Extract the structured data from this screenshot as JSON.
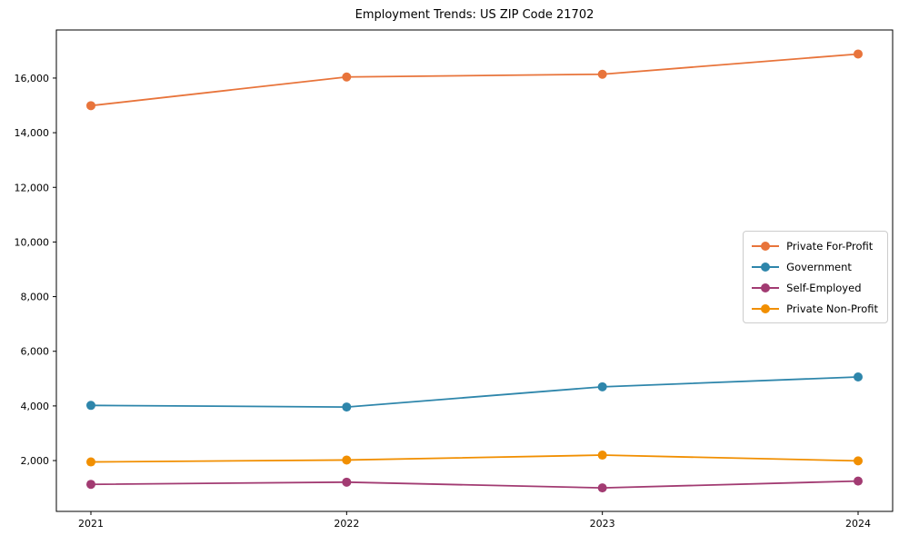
{
  "page": {
    "background_color": "#ffffff"
  },
  "chart_data": {
    "type": "line",
    "title": "Employment Trends: US ZIP Code 21702",
    "xlabel": "",
    "ylabel": "",
    "x": [
      2021,
      2022,
      2023,
      2024
    ],
    "series": [
      {
        "name": "Private For-Profit",
        "color": "#E8743B",
        "values": [
          14990,
          16040,
          16140,
          16880
        ]
      },
      {
        "name": "Government",
        "color": "#2E86AB",
        "values": [
          4020,
          3960,
          4700,
          5060
        ]
      },
      {
        "name": "Self-Employed",
        "color": "#A23B72",
        "values": [
          1130,
          1210,
          1000,
          1250
        ]
      },
      {
        "name": "Private Non-Profit",
        "color": "#F18F01",
        "values": [
          1950,
          2020,
          2200,
          1990
        ]
      }
    ],
    "ylim": [
      140,
      17760
    ],
    "yticks": [
      2000,
      4000,
      6000,
      8000,
      10000,
      12000,
      14000,
      16000
    ],
    "ytick_format": "thousands-comma",
    "grid": false,
    "legend_position": "center right",
    "marker": "circle",
    "frame": "full-box",
    "axis_color": "#000000"
  }
}
